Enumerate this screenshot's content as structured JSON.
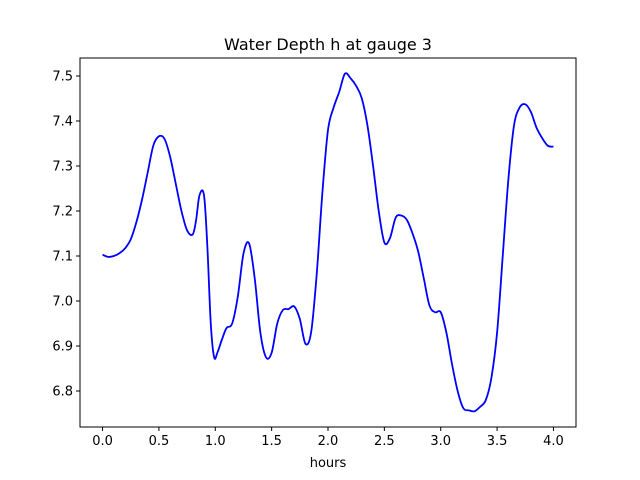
{
  "chart_data": {
    "type": "line",
    "title": "Water Depth h at gauge 3",
    "xlabel": "hours",
    "ylabel": "",
    "xlim": [
      -0.2,
      4.2
    ],
    "ylim": [
      6.72,
      7.54
    ],
    "xticks": [
      0.0,
      0.5,
      1.0,
      1.5,
      2.0,
      2.5,
      3.0,
      3.5,
      4.0
    ],
    "xtick_labels": [
      "0.0",
      "0.5",
      "1.0",
      "1.5",
      "2.0",
      "2.5",
      "3.0",
      "3.5",
      "4.0"
    ],
    "yticks": [
      6.8,
      6.9,
      7.0,
      7.1,
      7.2,
      7.3,
      7.4,
      7.5
    ],
    "ytick_labels": [
      "6.8",
      "6.9",
      "7.0",
      "7.1",
      "7.2",
      "7.3",
      "7.4",
      "7.5"
    ],
    "grid": false,
    "colors": {
      "line": "#0000ff",
      "axes": "#000000",
      "background": "#ffffff"
    },
    "series": [
      {
        "x": [
          0.0,
          0.05,
          0.1,
          0.15,
          0.2,
          0.25,
          0.3,
          0.35,
          0.4,
          0.45,
          0.5,
          0.55,
          0.6,
          0.65,
          0.7,
          0.75,
          0.8,
          0.83,
          0.86,
          0.9,
          0.93,
          0.96,
          0.99,
          1.02,
          1.06,
          1.1,
          1.15,
          1.2,
          1.25,
          1.3,
          1.35,
          1.4,
          1.45,
          1.5,
          1.55,
          1.6,
          1.65,
          1.7,
          1.75,
          1.8,
          1.85,
          1.9,
          1.95,
          2.0,
          2.05,
          2.1,
          2.15,
          2.2,
          2.25,
          2.3,
          2.35,
          2.4,
          2.45,
          2.5,
          2.55,
          2.6,
          2.65,
          2.7,
          2.75,
          2.8,
          2.85,
          2.9,
          2.95,
          3.0,
          3.05,
          3.1,
          3.15,
          3.2,
          3.25,
          3.3,
          3.35,
          3.4,
          3.45,
          3.5,
          3.55,
          3.6,
          3.65,
          3.7,
          3.75,
          3.8,
          3.85,
          3.9,
          3.95,
          4.0
        ],
        "y": [
          7.103,
          7.098,
          7.1,
          7.106,
          7.117,
          7.137,
          7.175,
          7.225,
          7.285,
          7.345,
          7.366,
          7.36,
          7.32,
          7.26,
          7.2,
          7.157,
          7.148,
          7.18,
          7.235,
          7.235,
          7.12,
          6.95,
          6.875,
          6.886,
          6.915,
          6.94,
          6.95,
          7.01,
          7.105,
          7.128,
          7.05,
          6.93,
          6.875,
          6.885,
          6.95,
          6.98,
          6.982,
          6.988,
          6.96,
          6.905,
          6.93,
          7.06,
          7.24,
          7.38,
          7.43,
          7.465,
          7.505,
          7.495,
          7.478,
          7.45,
          7.39,
          7.3,
          7.2,
          7.13,
          7.14,
          7.185,
          7.19,
          7.18,
          7.15,
          7.11,
          7.05,
          6.99,
          6.975,
          6.975,
          6.93,
          6.86,
          6.8,
          6.762,
          6.757,
          6.755,
          6.765,
          6.78,
          6.83,
          6.93,
          7.1,
          7.27,
          7.39,
          7.43,
          7.437,
          7.42,
          7.385,
          7.362,
          7.345,
          7.343
        ]
      }
    ]
  }
}
